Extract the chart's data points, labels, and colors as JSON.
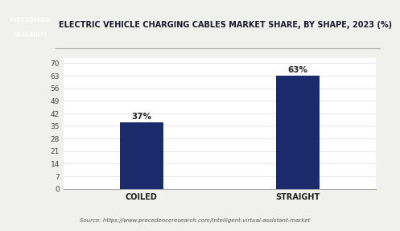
{
  "title": "ELECTRIC VEHICLE CHARGING CABLES MARKET SHARE, BY SHAPE, 2023 (%)",
  "categories": [
    "COILED",
    "STRAIGHT"
  ],
  "values": [
    37,
    63
  ],
  "bar_color": "#1b2a6b",
  "bar_labels": [
    "37%",
    "63%"
  ],
  "yticks": [
    0,
    7,
    14,
    21,
    28,
    35,
    42,
    49,
    56,
    63,
    70
  ],
  "ylim": [
    0,
    73
  ],
  "source_text": "Source: https://www.precedenceresearch.com/intelligent-virtual-assistant-market",
  "background_color": "#f0f0ec",
  "plot_bg_color": "#ffffff",
  "title_fontsize": 7.0,
  "label_fontsize": 7.5,
  "tick_fontsize": 6.5,
  "source_fontsize": 5.0,
  "logo_text_line1": "PRECEDENCE",
  "logo_text_line2": "RESEARCH",
  "logo_bg_color": "#1b2a6b",
  "separator_color": "#aaaaaa",
  "grid_color": "#dddddd"
}
